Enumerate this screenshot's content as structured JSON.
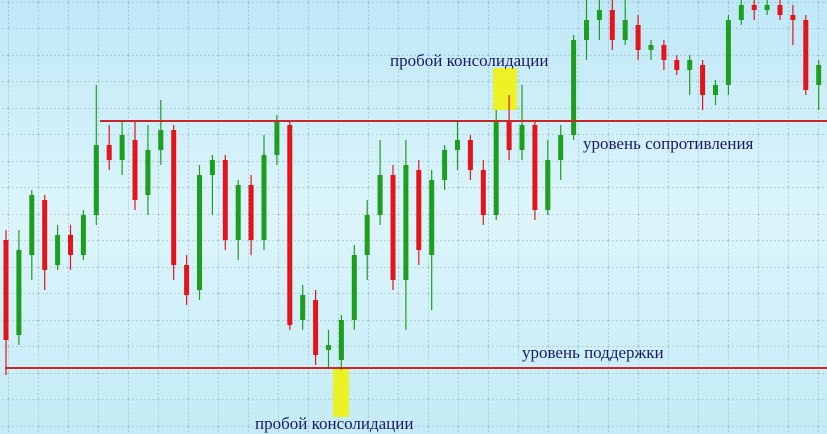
{
  "chart_data": {
    "type": "candlestick",
    "up_color": "#1e9e1e",
    "down_color": "#e3141b",
    "level_color": "#c8282a",
    "ylim": [
      0,
      434
    ],
    "grid": true,
    "series": {
      "open": [
        194,
        99,
        179,
        234,
        169,
        199,
        179,
        219,
        289,
        274,
        294,
        239,
        284,
        304,
        169,
        144,
        259,
        274,
        194,
        249,
        194,
        279,
        309,
        114,
        134,
        84,
        74,
        114,
        179,
        219,
        259,
        154,
        264,
        179,
        254,
        284,
        294,
        264,
        219,
        314,
        284,
        309,
        224,
        274,
        299,
        394,
        414,
        424,
        394,
        409,
        384,
        389,
        374,
        364,
        369,
        339,
        349,
        414,
        429,
        424,
        429,
        419,
        414,
        349
      ],
      "high": [
        204,
        204,
        244,
        239,
        209,
        209,
        224,
        349,
        309,
        314,
        314,
        309,
        334,
        309,
        179,
        269,
        279,
        279,
        254,
        259,
        299,
        319,
        314,
        149,
        144,
        104,
        119,
        189,
        234,
        294,
        269,
        294,
        274,
        264,
        289,
        314,
        299,
        274,
        324,
        339,
        349,
        314,
        294,
        309,
        399,
        434,
        434,
        434,
        434,
        419,
        394,
        394,
        379,
        379,
        374,
        354,
        419,
        434,
        434,
        434,
        434,
        429,
        419,
        374
      ],
      "low": [
        59,
        89,
        154,
        144,
        164,
        164,
        174,
        209,
        264,
        259,
        224,
        219,
        269,
        154,
        129,
        134,
        219,
        184,
        174,
        179,
        184,
        269,
        104,
        104,
        69,
        66,
        64,
        104,
        154,
        209,
        144,
        104,
        169,
        124,
        244,
        264,
        254,
        209,
        214,
        274,
        274,
        214,
        219,
        254,
        294,
        374,
        394,
        384,
        389,
        374,
        374,
        364,
        359,
        339,
        324,
        329,
        339,
        409,
        414,
        419,
        414,
        389,
        339,
        324
      ],
      "close": [
        94,
        184,
        239,
        164,
        199,
        179,
        219,
        289,
        274,
        299,
        234,
        284,
        304,
        169,
        139,
        259,
        274,
        194,
        249,
        194,
        279,
        314,
        109,
        139,
        79,
        89,
        114,
        179,
        219,
        259,
        154,
        269,
        184,
        254,
        284,
        294,
        264,
        219,
        314,
        284,
        309,
        224,
        274,
        299,
        394,
        414,
        424,
        394,
        414,
        384,
        389,
        374,
        364,
        374,
        339,
        349,
        414,
        429,
        424,
        429,
        419,
        414,
        344,
        369
      ]
    },
    "levels": [
      {
        "label": "уровень сопротивления",
        "value": 313
      },
      {
        "label": "уровень поддержки",
        "value": 66
      }
    ],
    "annotations": [
      "пробой консолидации",
      "пробой консолидации"
    ]
  }
}
